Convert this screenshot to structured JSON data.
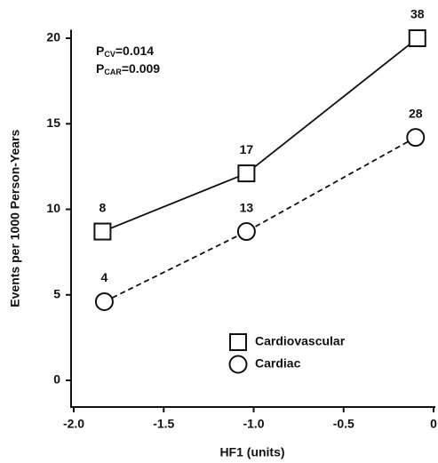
{
  "chart_data": {
    "type": "line",
    "x_label": "HF1 (units)",
    "y_label": "Events per 1000 Person-Years",
    "xlim": [
      -2,
      0
    ],
    "xticks": [
      {
        "value": -2,
        "label": "-2.0"
      },
      {
        "value": -1.5,
        "label": "-1.5"
      },
      {
        "value": -1,
        "label": "-1.0"
      },
      {
        "value": -0.5,
        "label": "-0.5"
      },
      0
    ],
    "ylim": [
      -1.5,
      20.5
    ],
    "yticks": [
      0,
      5,
      10,
      15,
      20
    ],
    "legend": "lower right",
    "annotations": [
      {
        "text": "P",
        "sub": "CV",
        "rest": "=0.014"
      },
      {
        "text": "P",
        "sub": "CAR",
        "rest": "=0.009"
      }
    ],
    "series": [
      {
        "name": "Cardiovascular",
        "color": "#111111",
        "marker": "square",
        "dash": false,
        "x": [
          -1.84,
          -1.04,
          -0.09
        ],
        "values": [
          8.7,
          12.1,
          20.0
        ],
        "point_labels": [
          8,
          17,
          38
        ]
      },
      {
        "name": "Cardiac",
        "color": "#111111",
        "marker": "circle",
        "dash": true,
        "x": [
          -1.83,
          -1.04,
          -0.1
        ],
        "values": [
          4.6,
          8.7,
          14.2
        ],
        "point_labels": [
          4,
          13,
          28
        ]
      }
    ]
  }
}
